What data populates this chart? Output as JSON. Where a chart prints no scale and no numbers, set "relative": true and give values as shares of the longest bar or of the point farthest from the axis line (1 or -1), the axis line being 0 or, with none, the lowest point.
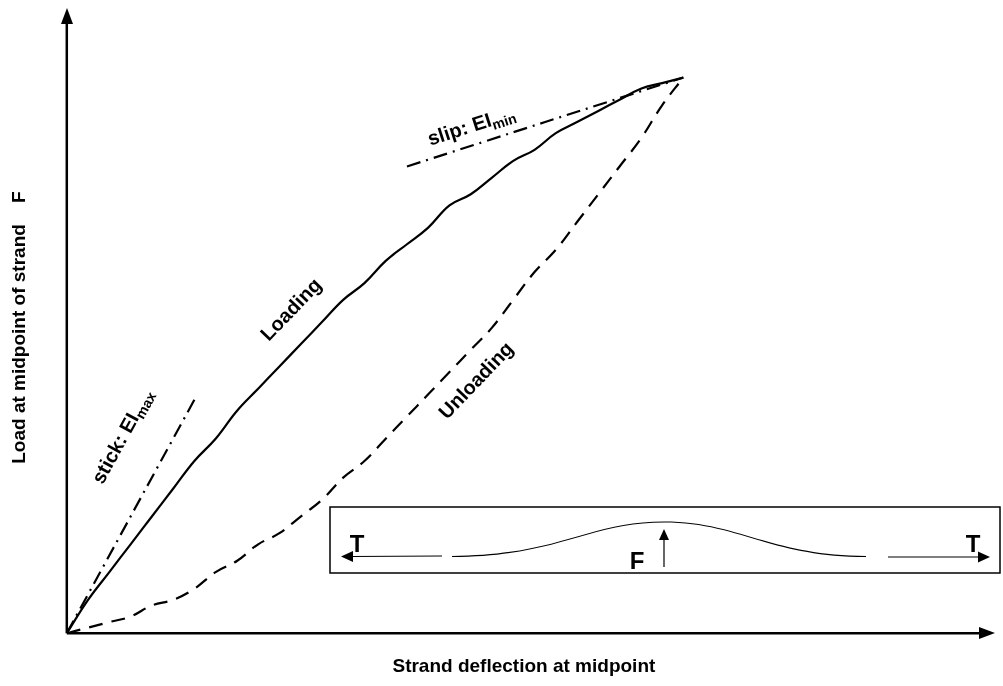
{
  "chart_data": {
    "type": "line",
    "relative": true,
    "xlabel": "Strand deflection at midpoint",
    "ylabel": "Load at midpoint of strand    F",
    "grid": false,
    "tick_labels": false,
    "legend": false,
    "marker": "none",
    "categories": [
      null,
      null,
      null,
      null,
      null,
      null,
      null,
      null,
      null,
      null,
      null,
      null,
      null,
      null,
      null,
      null,
      null,
      null,
      null,
      null,
      null,
      null,
      null,
      null,
      null,
      null,
      null,
      null,
      null,
      null,
      null,
      null,
      null,
      null,
      null,
      null,
      null,
      null,
      null,
      null,
      null,
      null,
      null,
      null
    ],
    "series": [
      {
        "name": "Loading",
        "color": "#000000",
        "line_style": "solid",
        "values": [
          0,
          0.06,
          0.11,
          0.16,
          0.21,
          0.26,
          0.31,
          0.35,
          0.4,
          0.44,
          0.48,
          0.52,
          0.56,
          0.6,
          0.63,
          0.67,
          0.7,
          0.73,
          0.77,
          0.79,
          0.82,
          0.85,
          0.87,
          0.9,
          0.92,
          0.94,
          0.96,
          0.98,
          0.99,
          1,
          null,
          null,
          null,
          null,
          null,
          null,
          null,
          null,
          null,
          null,
          null,
          null,
          null,
          null
        ]
      },
      {
        "name": "Unloading",
        "color": "#000000",
        "line_style": "dashed",
        "values": [
          0,
          0.01,
          0.02,
          0.03,
          0.05,
          0.06,
          0.08,
          0.11,
          0.13,
          0.16,
          0.18,
          0.21,
          0.24,
          0.28,
          0.31,
          0.35,
          0.39,
          0.43,
          0.47,
          0.51,
          0.55,
          0.6,
          0.65,
          0.69,
          0.74,
          0.79,
          0.84,
          0.89,
          0.95,
          1,
          null,
          null,
          null,
          null,
          null,
          null,
          null,
          null,
          null,
          null,
          null,
          null,
          null,
          null
        ]
      },
      {
        "name": "stick: EI$_{max}$",
        "color": "#000000",
        "line_style": "dashdot",
        "values": [
          0,
          null,
          null,
          null,
          null,
          null,
          0.42,
          null,
          null,
          null,
          null,
          null,
          null,
          null,
          null,
          null,
          null,
          null,
          null,
          null,
          null,
          null,
          null,
          null,
          null,
          null,
          null,
          null,
          null,
          null,
          null,
          null,
          null,
          null,
          null,
          null,
          null,
          null,
          null,
          null,
          null,
          null,
          null,
          null
        ]
      },
      {
        "name": "slip: EI$_{min}$",
        "color": "#000000",
        "line_style": "dashdot",
        "values": [
          null,
          null,
          null,
          null,
          null,
          null,
          null,
          null,
          null,
          null,
          null,
          null,
          null,
          null,
          null,
          null,
          0.84,
          null,
          null,
          null,
          null,
          null,
          null,
          null,
          null,
          null,
          null,
          null,
          null,
          1,
          null,
          null,
          null,
          null,
          null,
          null,
          null,
          null,
          null,
          null,
          null,
          null,
          null,
          null
        ]
      }
    ],
    "annotations": [
      "T",
      "F",
      "T"
    ]
  }
}
